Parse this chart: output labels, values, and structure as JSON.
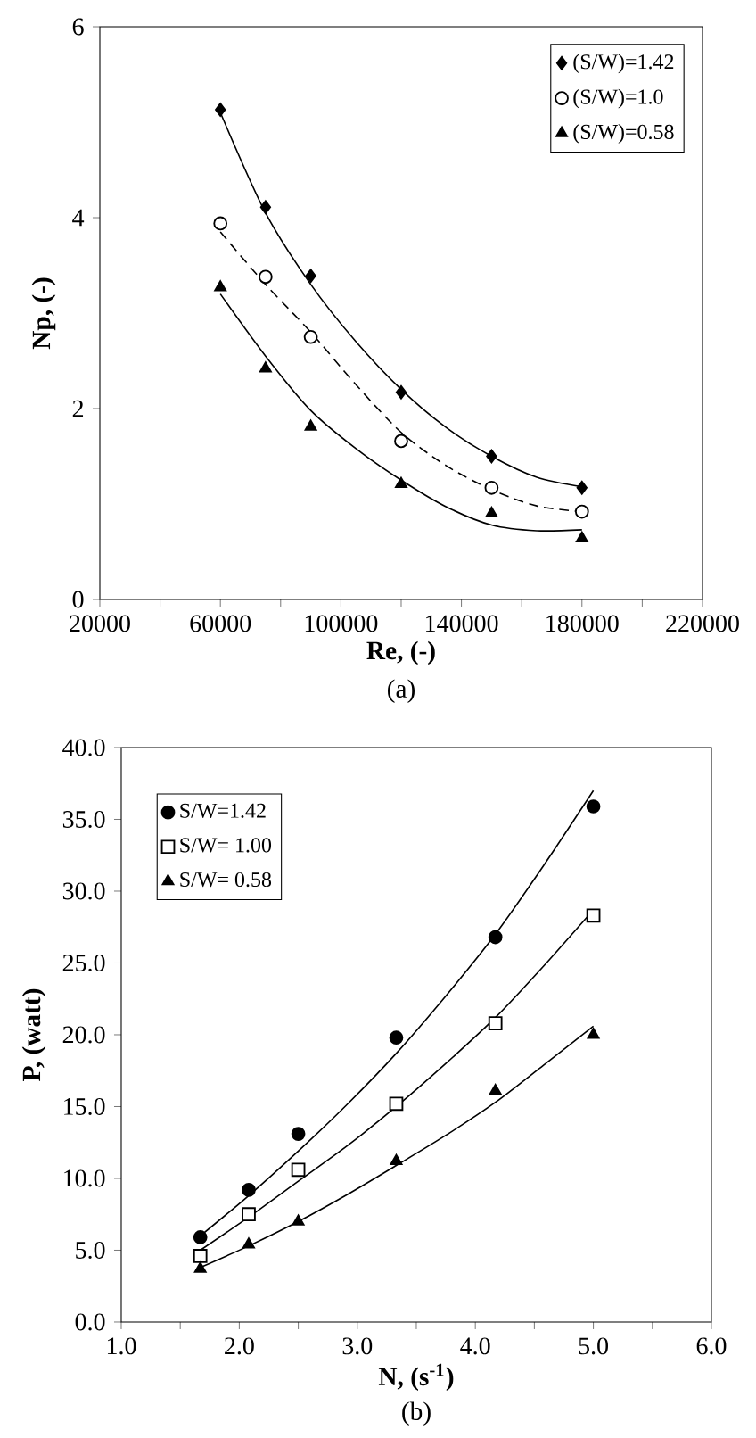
{
  "chart_data": [
    {
      "type": "scatter",
      "title": "(a)",
      "xlabel": "Re, (-)",
      "ylabel": "Np, (-)",
      "x": [
        60000,
        75000,
        90000,
        120000,
        150000,
        180000
      ],
      "xlim": [
        20000,
        220000
      ],
      "xticks": [
        20000,
        {
          "value": 40000,
          "label": null
        },
        60000,
        {
          "value": 80000,
          "label": null
        },
        100000,
        {
          "value": 120000,
          "label": null
        },
        140000,
        {
          "value": 160000,
          "label": null
        },
        180000,
        {
          "value": 200000,
          "label": null
        },
        220000
      ],
      "ylim": [
        0,
        6
      ],
      "yticks": [
        0,
        2,
        4,
        6
      ],
      "grid": false,
      "legend": "top right",
      "series": [
        {
          "name": "(S/W)=1.42",
          "marker": "diamond",
          "color": "#000000",
          "values": [
            5.13,
            4.11,
            3.39,
            2.17,
            1.5,
            1.17
          ]
        },
        {
          "name": "(S/W)=1.0",
          "marker": "circle",
          "color": "#ffffff",
          "values": [
            3.94,
            3.38,
            2.75,
            1.66,
            1.17,
            0.92
          ]
        },
        {
          "name": "(S/W)=0.58",
          "marker": "triangle",
          "color": "#000000",
          "values": [
            3.27,
            2.42,
            1.81,
            1.21,
            0.9,
            0.64
          ]
        },
        {
          "type": "line",
          "marker": "none",
          "line_style": "solid",
          "color": "#000000",
          "x": [
            60000,
            75000,
            90000,
            105000,
            120000,
            135000,
            150000,
            165000,
            180000
          ],
          "values": [
            5.1,
            4.05,
            3.3,
            2.7,
            2.2,
            1.8,
            1.5,
            1.28,
            1.18
          ]
        },
        {
          "type": "line",
          "marker": "none",
          "line_style": "dashed",
          "color": "#000000",
          "x": [
            60000,
            75000,
            90000,
            105000,
            120000,
            135000,
            150000,
            165000,
            180000
          ],
          "values": [
            3.85,
            3.3,
            2.8,
            2.25,
            1.75,
            1.4,
            1.15,
            0.98,
            0.92
          ]
        },
        {
          "type": "line",
          "marker": "none",
          "line_style": "solid",
          "color": "#000000",
          "x": [
            60000,
            75000,
            90000,
            105000,
            120000,
            135000,
            150000,
            165000,
            180000
          ],
          "values": [
            3.2,
            2.55,
            1.98,
            1.58,
            1.25,
            0.97,
            0.78,
            0.72,
            0.73
          ]
        }
      ]
    },
    {
      "type": "scatter",
      "title": "(b)",
      "xlabel": "N, (s$^{-1}$)",
      "ylabel": "P, (watt)",
      "x": [
        1.67,
        2.08,
        2.5,
        3.33,
        4.17,
        5.0
      ],
      "xlim": [
        1,
        6
      ],
      "xticks": [
        {
          "value": 1,
          "label": "1.0"
        },
        {
          "value": 1.5,
          "label": null
        },
        {
          "value": 2,
          "label": "2.0"
        },
        {
          "value": 2.5,
          "label": null
        },
        {
          "value": 3,
          "label": "3.0"
        },
        {
          "value": 3.5,
          "label": null
        },
        {
          "value": 4,
          "label": "4.0"
        },
        {
          "value": 4.5,
          "label": null
        },
        {
          "value": 5,
          "label": "5.0"
        },
        {
          "value": 5.5,
          "label": null
        },
        {
          "value": 6,
          "label": "6.0"
        }
      ],
      "ylim": [
        0,
        40
      ],
      "yticks": [
        {
          "value": 0,
          "label": "0.0"
        },
        {
          "value": 5,
          "label": "5.0"
        },
        {
          "value": 10,
          "label": "10.0"
        },
        {
          "value": 15,
          "label": "15.0"
        },
        {
          "value": 20,
          "label": "20.0"
        },
        {
          "value": 25,
          "label": "25.0"
        },
        {
          "value": 30,
          "label": "30.0"
        },
        {
          "value": 35,
          "label": "35.0"
        },
        {
          "value": 40,
          "label": "40.0"
        }
      ],
      "grid": false,
      "legend": "top left",
      "series": [
        {
          "name": "S/W=1.42",
          "marker": "circle",
          "color": "#000000",
          "values": [
            5.9,
            9.2,
            13.1,
            19.8,
            26.8,
            35.9
          ]
        },
        {
          "name": "S/W= 1.00",
          "marker": "square",
          "color": "#ffffff",
          "values": [
            4.6,
            7.5,
            10.6,
            15.2,
            20.8,
            28.3
          ]
        },
        {
          "name": "S/W= 0.58",
          "marker": "triangle",
          "color": "#000000",
          "values": [
            3.7,
            5.4,
            7.0,
            11.2,
            16.1,
            20.0
          ]
        },
        {
          "type": "line",
          "marker": "none",
          "line_style": "solid",
          "color": "#000000",
          "x": [
            1.67,
            2.08,
            2.5,
            2.92,
            3.33,
            3.75,
            4.17,
            4.58,
            5.0
          ],
          "values": [
            6.0,
            8.8,
            11.9,
            15.2,
            18.7,
            22.7,
            27.0,
            31.8,
            37.0
          ]
        },
        {
          "type": "line",
          "marker": "none",
          "line_style": "solid",
          "color": "#000000",
          "x": [
            1.67,
            2.08,
            2.5,
            2.92,
            3.33,
            3.75,
            4.17,
            4.58,
            5.0
          ],
          "values": [
            5.0,
            7.3,
            9.8,
            12.3,
            15.0,
            18.0,
            21.2,
            24.8,
            28.7
          ]
        },
        {
          "type": "line",
          "marker": "none",
          "line_style": "solid",
          "color": "#000000",
          "x": [
            1.67,
            2.08,
            2.5,
            2.92,
            3.33,
            3.75,
            4.17,
            4.58,
            5.0
          ],
          "values": [
            3.8,
            5.3,
            7.0,
            8.9,
            10.9,
            13.0,
            15.3,
            17.9,
            20.6
          ]
        }
      ]
    }
  ]
}
